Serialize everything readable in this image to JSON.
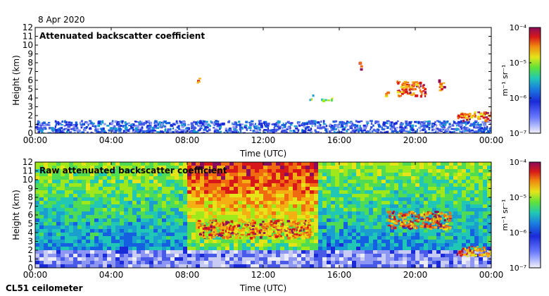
{
  "header": {
    "date": "8 Apr 2020"
  },
  "footer": {
    "instrument": "CL51 ceilometer"
  },
  "chart_data": [
    {
      "type": "heatmap",
      "title": "Attenuated backscatter coefficient",
      "xlabel": "Time (UTC)",
      "ylabel": "Height (km)",
      "xlim": [
        0,
        24
      ],
      "ylim": [
        0,
        12
      ],
      "xticks": [
        "00:00",
        "04:00",
        "08:00",
        "12:00",
        "16:00",
        "20:00",
        "00:00"
      ],
      "yticks": [
        "0",
        "1",
        "2",
        "3",
        "4",
        "5",
        "6",
        "7",
        "8",
        "9",
        "10",
        "11",
        "12"
      ],
      "colorbar": {
        "label": "m⁻¹ sr⁻¹",
        "ticks": [
          "10⁻⁷",
          "10⁻⁶",
          "10⁻⁵",
          "10⁻⁴"
        ],
        "scale": "log",
        "min": 1e-07,
        "max": 0.0001
      },
      "features": [
        {
          "name": "boundary layer aerosol",
          "x": [
            0,
            24
          ],
          "y": [
            0,
            1.5
          ],
          "level": "low"
        },
        {
          "name": "cloud",
          "x": [
            8.5,
            8.6
          ],
          "y": [
            5.8,
            6.3
          ],
          "level": "high"
        },
        {
          "name": "cloud",
          "x": [
            14.4,
            14.6
          ],
          "y": [
            3.8,
            4.4
          ],
          "level": "mid"
        },
        {
          "name": "cloud",
          "x": [
            15.0,
            15.6
          ],
          "y": [
            3.8,
            4.1
          ],
          "level": "mid"
        },
        {
          "name": "cloud",
          "x": [
            17.0,
            17.1
          ],
          "y": [
            7.0,
            8.2
          ],
          "level": "high"
        },
        {
          "name": "cloud",
          "x": [
            18.4,
            18.6
          ],
          "y": [
            4.3,
            4.8
          ],
          "level": "high"
        },
        {
          "name": "cloud",
          "x": [
            19.0,
            20.5
          ],
          "y": [
            4.3,
            6.0
          ],
          "level": "high"
        },
        {
          "name": "cloud",
          "x": [
            21.2,
            21.5
          ],
          "y": [
            4.8,
            6.3
          ],
          "level": "high"
        },
        {
          "name": "low cloud",
          "x": [
            22.1,
            24
          ],
          "y": [
            1.5,
            2.5
          ],
          "level": "high"
        }
      ]
    },
    {
      "type": "heatmap",
      "title": "Raw attenuated backscatter coefficient",
      "xlabel": "Time (UTC)",
      "ylabel": "Height (km)",
      "xlim": [
        0,
        24
      ],
      "ylim": [
        0,
        12
      ],
      "xticks": [
        "00:00",
        "04:00",
        "08:00",
        "12:00",
        "16:00",
        "20:00",
        "00:00"
      ],
      "yticks": [
        "0",
        "1",
        "2",
        "3",
        "4",
        "5",
        "6",
        "7",
        "8",
        "9",
        "10",
        "11",
        "12"
      ],
      "colorbar": {
        "label": "m⁻¹ sr⁻¹",
        "ticks": [
          "10⁻⁷",
          "10⁻⁶",
          "10⁻⁵",
          "10⁻⁴"
        ],
        "scale": "log",
        "min": 1e-07,
        "max": 0.0001
      },
      "features": [
        {
          "name": "noise-dominated background",
          "x": [
            0,
            24
          ],
          "y": [
            2,
            12
          ],
          "level": "mid"
        },
        {
          "name": "strong noise",
          "x": [
            8,
            15
          ],
          "y": [
            6,
            12
          ],
          "level": "high"
        },
        {
          "name": "cloud layer",
          "x": [
            8.5,
            14.5
          ],
          "y": [
            3.5,
            5.5
          ],
          "level": "high"
        },
        {
          "name": "cloud",
          "x": [
            18.5,
            21.8
          ],
          "y": [
            4.5,
            6.5
          ],
          "level": "high"
        },
        {
          "name": "low cloud",
          "x": [
            22.1,
            24
          ],
          "y": [
            1.5,
            2.5
          ],
          "level": "high"
        }
      ]
    }
  ]
}
